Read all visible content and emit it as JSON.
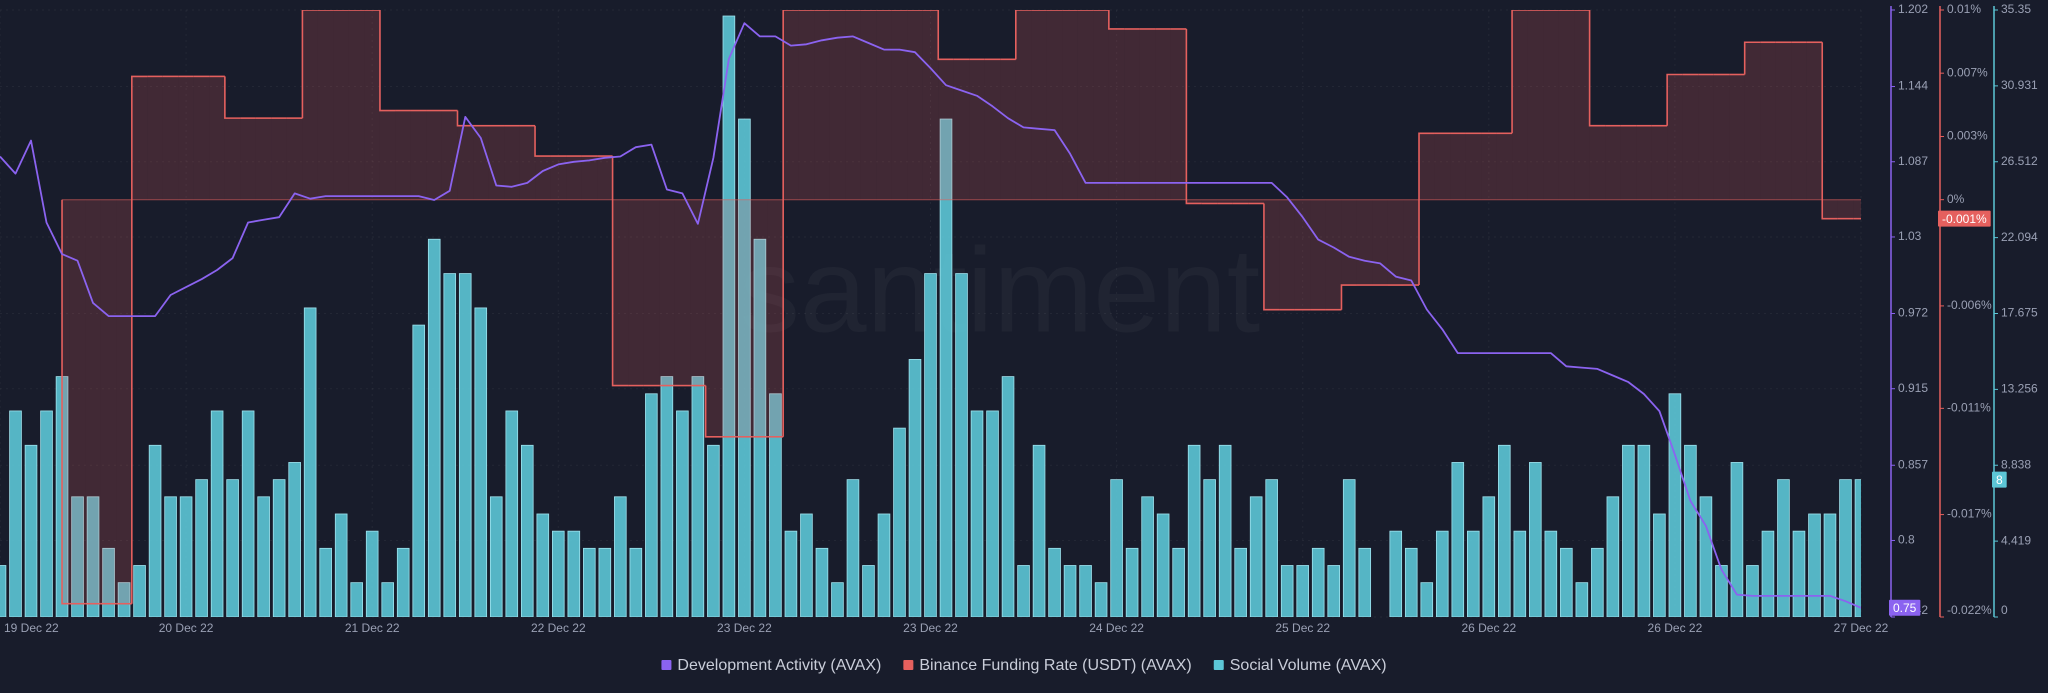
{
  "chart_data": {
    "type": "combo",
    "watermark": "santiment",
    "grid": true,
    "categories": [
      "19 Dec 22",
      null,
      null,
      null,
      null,
      null,
      null,
      null,
      null,
      null,
      null,
      null,
      "20 Dec 22",
      null,
      null,
      null,
      null,
      null,
      null,
      null,
      null,
      null,
      null,
      null,
      "21 Dec 22",
      null,
      null,
      null,
      null,
      null,
      null,
      null,
      null,
      null,
      null,
      null,
      "22 Dec 22",
      null,
      null,
      null,
      null,
      null,
      null,
      null,
      null,
      null,
      null,
      null,
      "23 Dec 22",
      null,
      null,
      null,
      null,
      null,
      null,
      null,
      null,
      null,
      null,
      null,
      "23 Dec 22",
      null,
      null,
      null,
      null,
      null,
      null,
      null,
      null,
      null,
      null,
      null,
      "24 Dec 22",
      null,
      null,
      null,
      null,
      null,
      null,
      null,
      null,
      null,
      null,
      null,
      "25 Dec 22",
      null,
      null,
      null,
      null,
      null,
      null,
      null,
      null,
      null,
      null,
      null,
      "26 Dec 22",
      null,
      null,
      null,
      null,
      null,
      null,
      null,
      null,
      null,
      null,
      null,
      "26 Dec 22",
      null,
      null,
      null,
      null,
      null,
      null,
      null,
      null,
      null,
      null,
      null,
      "27 Dec 22"
    ],
    "ylim": [
      0.742,
      1.202
    ],
    "yticks": [
      1.202,
      1.144,
      1.087,
      1.03,
      0.972,
      0.915,
      0.857,
      0.8,
      0.742
    ],
    "y2lim": [
      -0.022,
      0.01
    ],
    "y2ticks": [
      {
        "value": 0.01,
        "label": "0.01%"
      },
      {
        "value": 0.00667,
        "label": "0.007%"
      },
      {
        "value": 0.00333,
        "label": "0.003%"
      },
      {
        "value": 0,
        "label": "0%"
      },
      {
        "value": -0.0056,
        "label": "-0.006%"
      },
      {
        "value": -0.011,
        "label": "-0.011%"
      },
      {
        "value": -0.0166,
        "label": "-0.017%"
      },
      {
        "value": -0.022,
        "label": "-0.022%"
      }
    ],
    "y3lim": [
      0,
      35.35
    ],
    "y3ticks": [
      35.35,
      30.931,
      26.512,
      22.094,
      17.675,
      13.256,
      8.838,
      4.419,
      0
    ],
    "series": [
      {
        "name": "Development Activity (AVAX)",
        "color": "#8b63f0",
        "type": "line",
        "axis": "y",
        "current_label": "0.75",
        "values": [
          1.091,
          1.078,
          1.103,
          1.041,
          1.017,
          1.012,
          0.98,
          0.97,
          0.97,
          0.97,
          0.97,
          0.986,
          0.992,
          0.998,
          1.005,
          1.014,
          1.041,
          1.043,
          1.045,
          1.063,
          1.059,
          1.061,
          1.061,
          1.061,
          1.061,
          1.061,
          1.061,
          1.061,
          1.058,
          1.065,
          1.121,
          1.105,
          1.069,
          1.068,
          1.071,
          1.08,
          1.085,
          1.087,
          1.088,
          1.09,
          1.091,
          1.098,
          1.1,
          1.066,
          1.063,
          1.04,
          1.09,
          1.165,
          1.192,
          1.182,
          1.182,
          1.175,
          1.176,
          1.179,
          1.181,
          1.182,
          1.177,
          1.172,
          1.172,
          1.17,
          1.158,
          1.145,
          1.141,
          1.137,
          1.129,
          1.12,
          1.113,
          1.112,
          1.111,
          1.093,
          1.071,
          1.071,
          1.071,
          1.071,
          1.071,
          1.071,
          1.071,
          1.071,
          1.071,
          1.071,
          1.071,
          1.071,
          1.071,
          1.06,
          1.045,
          1.028,
          1.022,
          1.015,
          1.012,
          1.01,
          1.0,
          0.997,
          0.975,
          0.96,
          0.942,
          0.942,
          0.942,
          0.942,
          0.942,
          0.942,
          0.942,
          0.932,
          0.931,
          0.93,
          0.925,
          0.92,
          0.911,
          0.898,
          0.865,
          0.83,
          0.811,
          0.778,
          0.759,
          0.758,
          0.758,
          0.758,
          0.758,
          0.758,
          0.758,
          0.754,
          0.749
        ]
      },
      {
        "name": "Binance Funding Rate (USDT) (AVAX)",
        "color": "#e5605e",
        "type": "step-area",
        "axis": "y2",
        "current_label": "-0.001%",
        "values": [
          null,
          null,
          null,
          null,
          -0.0213,
          -0.0213,
          -0.0213,
          -0.0213,
          -0.0213,
          0.0065,
          0.0065,
          0.0065,
          0.0065,
          0.0065,
          0.0065,
          0.0043,
          0.0043,
          0.0043,
          0.0043,
          0.0043,
          0.01,
          0.01,
          0.01,
          0.01,
          0.01,
          0.0047,
          0.0047,
          0.0047,
          0.0047,
          0.0047,
          0.0039,
          0.0039,
          0.0039,
          0.0039,
          0.0039,
          0.0023,
          0.0023,
          0.0023,
          0.0023,
          0.0023,
          -0.0098,
          -0.0098,
          -0.0098,
          -0.0098,
          -0.0098,
          -0.0098,
          -0.0125,
          -0.0125,
          -0.0125,
          -0.0125,
          -0.0125,
          0.01,
          0.01,
          0.01,
          0.01,
          0.01,
          0.01,
          0.01,
          0.01,
          0.01,
          0.01,
          0.0074,
          0.0074,
          0.0074,
          0.0074,
          0.0074,
          0.01,
          0.01,
          0.01,
          0.01,
          0.01,
          0.01,
          0.009,
          0.009,
          0.009,
          0.009,
          0.009,
          -0.0002,
          -0.0002,
          -0.0002,
          -0.0002,
          -0.0002,
          -0.0058,
          -0.0058,
          -0.0058,
          -0.0058,
          -0.0058,
          -0.0045,
          -0.0045,
          -0.0045,
          -0.0045,
          -0.0045,
          0.0035,
          0.0035,
          0.0035,
          0.0035,
          0.0035,
          0.0035,
          0.01,
          0.01,
          0.01,
          0.01,
          0.01,
          0.0039,
          0.0039,
          0.0039,
          0.0039,
          0.0039,
          0.0066,
          0.0066,
          0.0066,
          0.0066,
          0.0066,
          0.0083,
          0.0083,
          0.0083,
          0.0083,
          0.0083,
          -0.001,
          -0.001,
          -0.001
        ]
      },
      {
        "name": "Social Volume (AVAX)",
        "color": "#5cc6d6",
        "type": "bar",
        "axis": "y3",
        "current_label": "8",
        "values": [
          3,
          12,
          10,
          12,
          14,
          7,
          7,
          4,
          2,
          3,
          10,
          7,
          7,
          8,
          12,
          8,
          12,
          7,
          8,
          9,
          18,
          4,
          6,
          2,
          5,
          2,
          4,
          17,
          22,
          20,
          20,
          18,
          7,
          12,
          10,
          6,
          5,
          5,
          4,
          4,
          7,
          4,
          13,
          14,
          12,
          14,
          10,
          35,
          29,
          22,
          13,
          5,
          6,
          4,
          2,
          8,
          3,
          6,
          11,
          15,
          20,
          29,
          20,
          12,
          12,
          14,
          3,
          10,
          4,
          3,
          3,
          2,
          8,
          4,
          7,
          6,
          4,
          10,
          8,
          10,
          4,
          7,
          8,
          3,
          3,
          4,
          3,
          8,
          4,
          0,
          5,
          4,
          2,
          5,
          9,
          5,
          7,
          10,
          5,
          9,
          5,
          4,
          2,
          4,
          7,
          10,
          10,
          6,
          13,
          10,
          7,
          3,
          9,
          3,
          5,
          8,
          5,
          6,
          6,
          8,
          8
        ]
      }
    ]
  }
}
